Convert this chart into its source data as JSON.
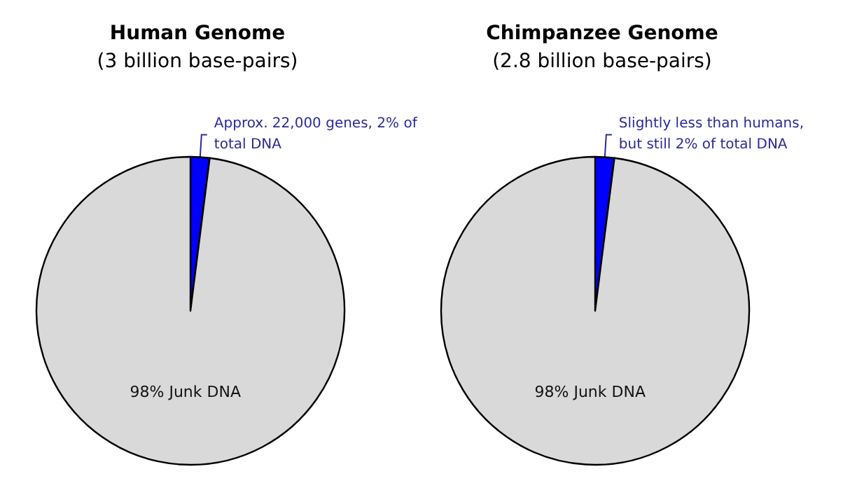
{
  "chart_data": [
    {
      "type": "pie",
      "title": "Human Genome",
      "subtitle": "(3 billion base-pairs)",
      "categories": [
        "Approx. 22,000 genes, 2% of total DNA",
        "98% Junk DNA"
      ],
      "values": [
        2,
        98
      ],
      "colors": [
        "#0000ff",
        "#d9d9d9"
      ],
      "legend": false
    },
    {
      "type": "pie",
      "title": "Chimpanzee Genome",
      "subtitle": "(2.8 billion base-pairs)",
      "categories": [
        "Slightly less than humans, but still 2% of total DNA",
        "98% Junk DNA"
      ],
      "values": [
        2,
        98
      ],
      "colors": [
        "#0000ff",
        "#d9d9d9"
      ],
      "legend": false
    }
  ]
}
